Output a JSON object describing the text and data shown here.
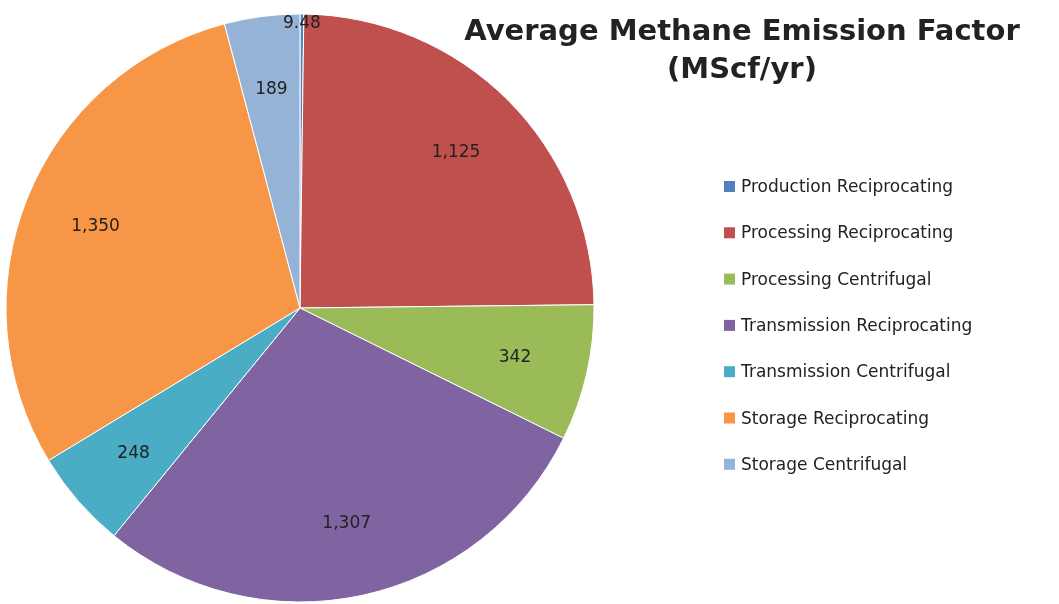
{
  "chart_data": {
    "type": "pie",
    "title": "Average Methane Emission Factor (MScf/yr)",
    "categories": [
      "Production Reciprocating",
      "Processing Reciprocating",
      "Processing Centrifugal",
      "Transmission Reciprocating",
      "Transmission Centrifugal",
      "Storage Reciprocating",
      "Storage Centrifugal"
    ],
    "values": [
      9.48,
      1125,
      342,
      1307,
      248,
      1350,
      189
    ],
    "value_labels": [
      "9.48",
      "1,125",
      "342",
      "1,307",
      "248",
      "1,350",
      "189"
    ],
    "colors": [
      "#4f81bd",
      "#c0504d",
      "#9bbb59",
      "#8064a2",
      "#4bacc6",
      "#f79646",
      "#95b3d7"
    ],
    "legend": "right"
  }
}
